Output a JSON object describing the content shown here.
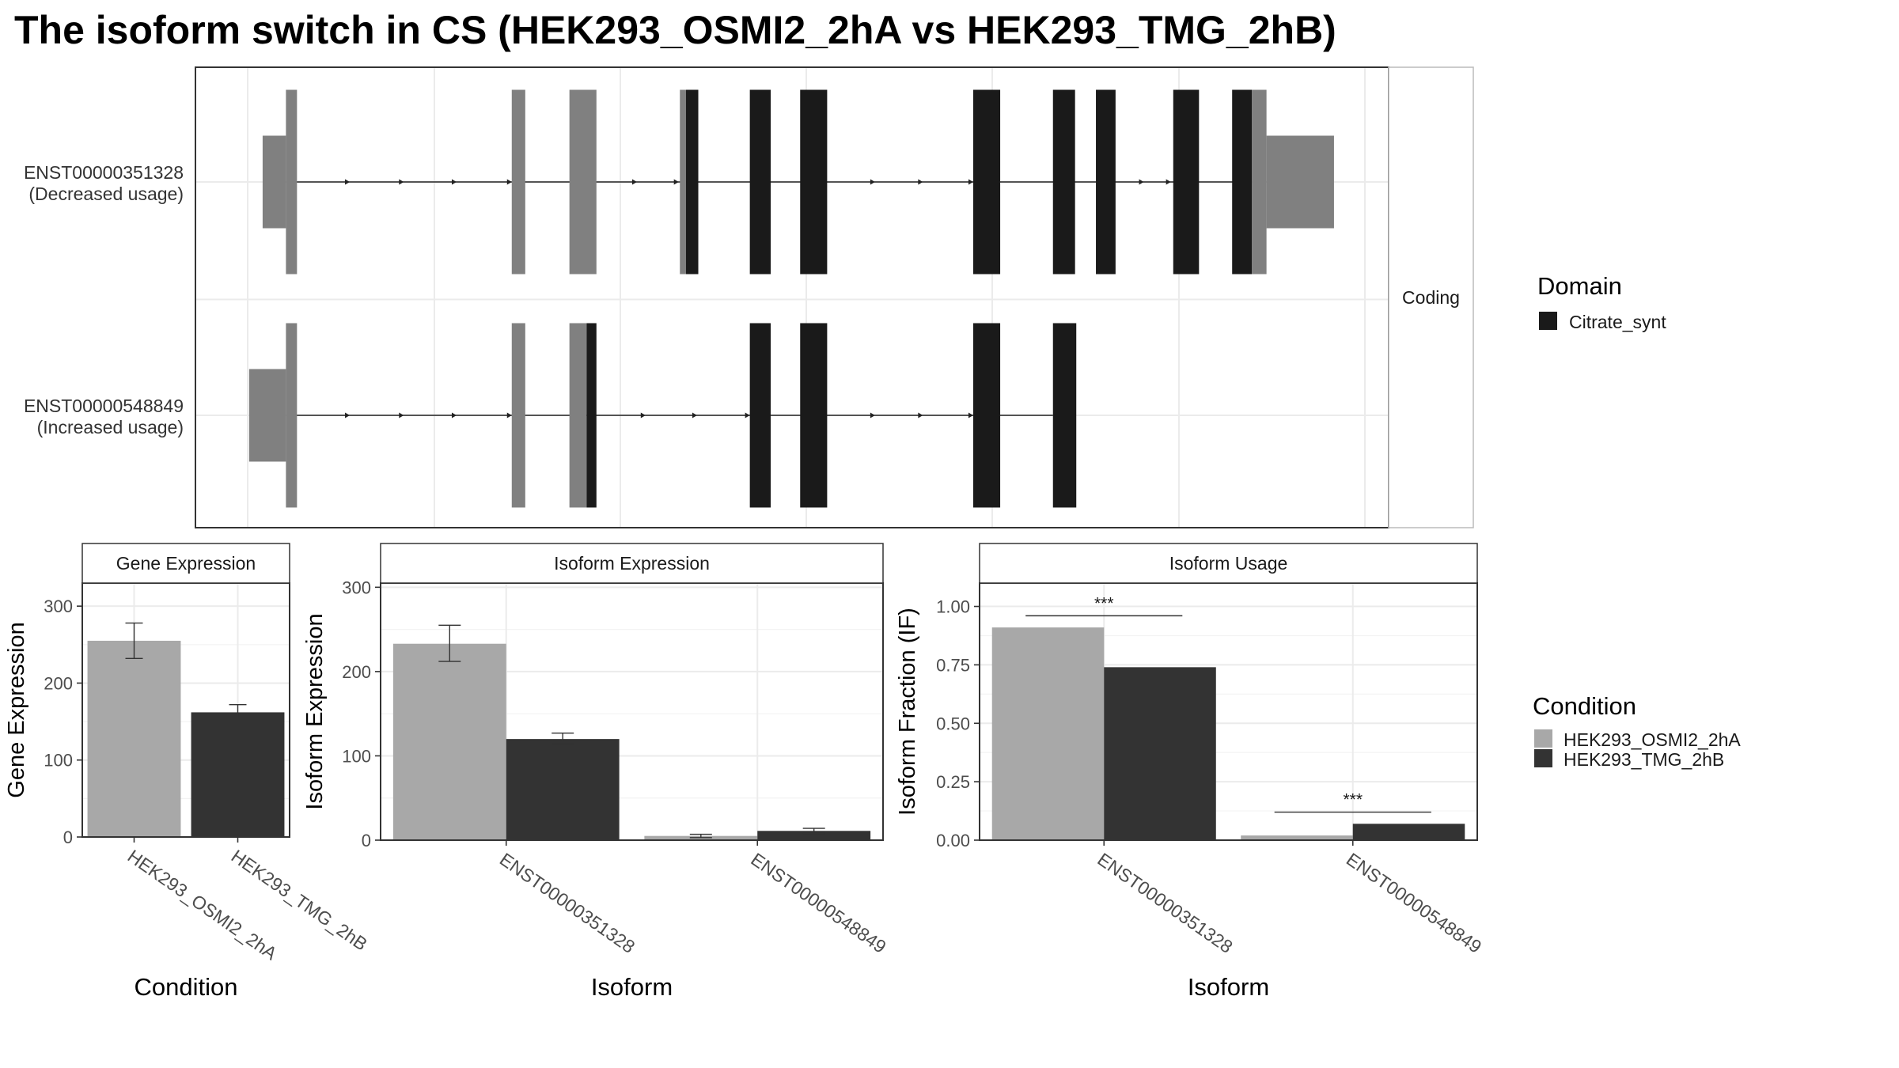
{
  "title": "The isoform switch in CS (HEK293_OSMI2_2hA vs HEK293_TMG_2hB)",
  "colors": {
    "condition_a": "#a8a8a8",
    "condition_b": "#333333",
    "exon_noncoding": "#808080",
    "exon_domain": "#1a1a1a",
    "grid": "#ebebeb",
    "strip_bg": "#ffffff",
    "panel_border": "#333333"
  },
  "chart_data": [
    {
      "type": "transcript_structure",
      "strip_label": "Coding",
      "domain_legend": {
        "title": "Domain",
        "entries": [
          {
            "name": "Citrate_synt",
            "color": "#1a1a1a"
          }
        ]
      },
      "transcripts": [
        {
          "id": "ENST00000351328",
          "annotation": "(Decreased usage)",
          "intron": [
            233,
            1032
          ],
          "exons": [
            {
              "start": 214,
              "end": 233,
              "kind": "utr"
            },
            {
              "start": 233,
              "end": 242,
              "kind": "cds"
            },
            {
              "start": 417,
              "end": 428,
              "kind": "cds"
            },
            {
              "start": 464,
              "end": 486,
              "kind": "cds"
            },
            {
              "start": 554,
              "end": 559,
              "kind": "cds"
            },
            {
              "start": 559,
              "end": 569,
              "kind": "domain"
            },
            {
              "start": 611,
              "end": 628,
              "kind": "domain"
            },
            {
              "start": 652,
              "end": 674,
              "kind": "domain"
            },
            {
              "start": 793,
              "end": 815,
              "kind": "domain"
            },
            {
              "start": 858,
              "end": 876,
              "kind": "domain"
            },
            {
              "start": 893,
              "end": 909,
              "kind": "domain"
            },
            {
              "start": 956,
              "end": 977,
              "kind": "domain"
            },
            {
              "start": 1004,
              "end": 1020,
              "kind": "domain"
            },
            {
              "start": 1020,
              "end": 1032,
              "kind": "cds"
            },
            {
              "start": 1032,
              "end": 1087,
              "kind": "utr"
            }
          ],
          "arrows": [
            285,
            329,
            372,
            417,
            519,
            553,
            713,
            752,
            793,
            932,
            954
          ]
        },
        {
          "id": "ENST00000548849",
          "annotation": "(Increased usage)",
          "intron": [
            233,
            858
          ],
          "exons": [
            {
              "start": 203,
              "end": 233,
              "kind": "utr"
            },
            {
              "start": 233,
              "end": 242,
              "kind": "cds"
            },
            {
              "start": 417,
              "end": 428,
              "kind": "cds"
            },
            {
              "start": 464,
              "end": 478,
              "kind": "cds"
            },
            {
              "start": 478,
              "end": 486,
              "kind": "domain"
            },
            {
              "start": 611,
              "end": 628,
              "kind": "domain"
            },
            {
              "start": 652,
              "end": 674,
              "kind": "domain"
            },
            {
              "start": 793,
              "end": 815,
              "kind": "domain"
            },
            {
              "start": 858,
              "end": 877,
              "kind": "domain"
            }
          ],
          "arrows": [
            285,
            329,
            372,
            417,
            526,
            568,
            611,
            713,
            752,
            793
          ]
        }
      ]
    },
    {
      "type": "bar",
      "title": "Gene Expression",
      "xlabel": "Condition",
      "ylabel": "Gene Expression",
      "ylim": [
        0,
        330
      ],
      "yticks": [
        0,
        100,
        200,
        300
      ],
      "categories": [
        "HEK293_OSMI2_2hA",
        "HEK293_TMG_2hB"
      ],
      "values": [
        255,
        162
      ],
      "errors": [
        [
          232,
          278
        ],
        [
          155,
          172
        ]
      ]
    },
    {
      "type": "bar",
      "title": "Isoform Expression",
      "xlabel": "Isoform",
      "ylabel": "Isoform Expression",
      "ylim": [
        0,
        305
      ],
      "yticks": [
        0,
        100,
        200,
        300
      ],
      "categories": [
        "ENST00000351328",
        "ENST00000548849"
      ],
      "series": [
        {
          "name": "HEK293_OSMI2_2hA",
          "values": [
            233,
            5
          ],
          "errors": [
            [
              212,
              255
            ],
            [
              3,
              7
            ]
          ]
        },
        {
          "name": "HEK293_TMG_2hB",
          "values": [
            120,
            11
          ],
          "errors": [
            [
              114,
              127
            ],
            [
              8,
              14
            ]
          ]
        }
      ]
    },
    {
      "type": "bar",
      "title": "Isoform Usage",
      "xlabel": "Isoform",
      "ylabel": "Isoform Fraction (IF)",
      "ylim": [
        0,
        1.1
      ],
      "yticks": [
        0,
        0.25,
        0.5,
        0.75,
        1.0
      ],
      "ytick_labels": [
        "0.00",
        "0.25",
        "0.50",
        "0.75",
        "1.00"
      ],
      "categories": [
        "ENST00000351328",
        "ENST00000548849"
      ],
      "series": [
        {
          "name": "HEK293_OSMI2_2hA",
          "values": [
            0.91,
            0.02
          ]
        },
        {
          "name": "HEK293_TMG_2hB",
          "values": [
            0.74,
            0.07
          ]
        }
      ],
      "significance": [
        {
          "category": "ENST00000351328",
          "label": "***",
          "y": 0.96
        },
        {
          "category": "ENST00000548849",
          "label": "***",
          "y": 0.12
        }
      ]
    }
  ],
  "condition_legend": {
    "title": "Condition",
    "entries": [
      {
        "name": "HEK293_OSMI2_2hA",
        "color": "#a8a8a8"
      },
      {
        "name": "HEK293_TMG_2hB",
        "color": "#333333"
      }
    ]
  }
}
